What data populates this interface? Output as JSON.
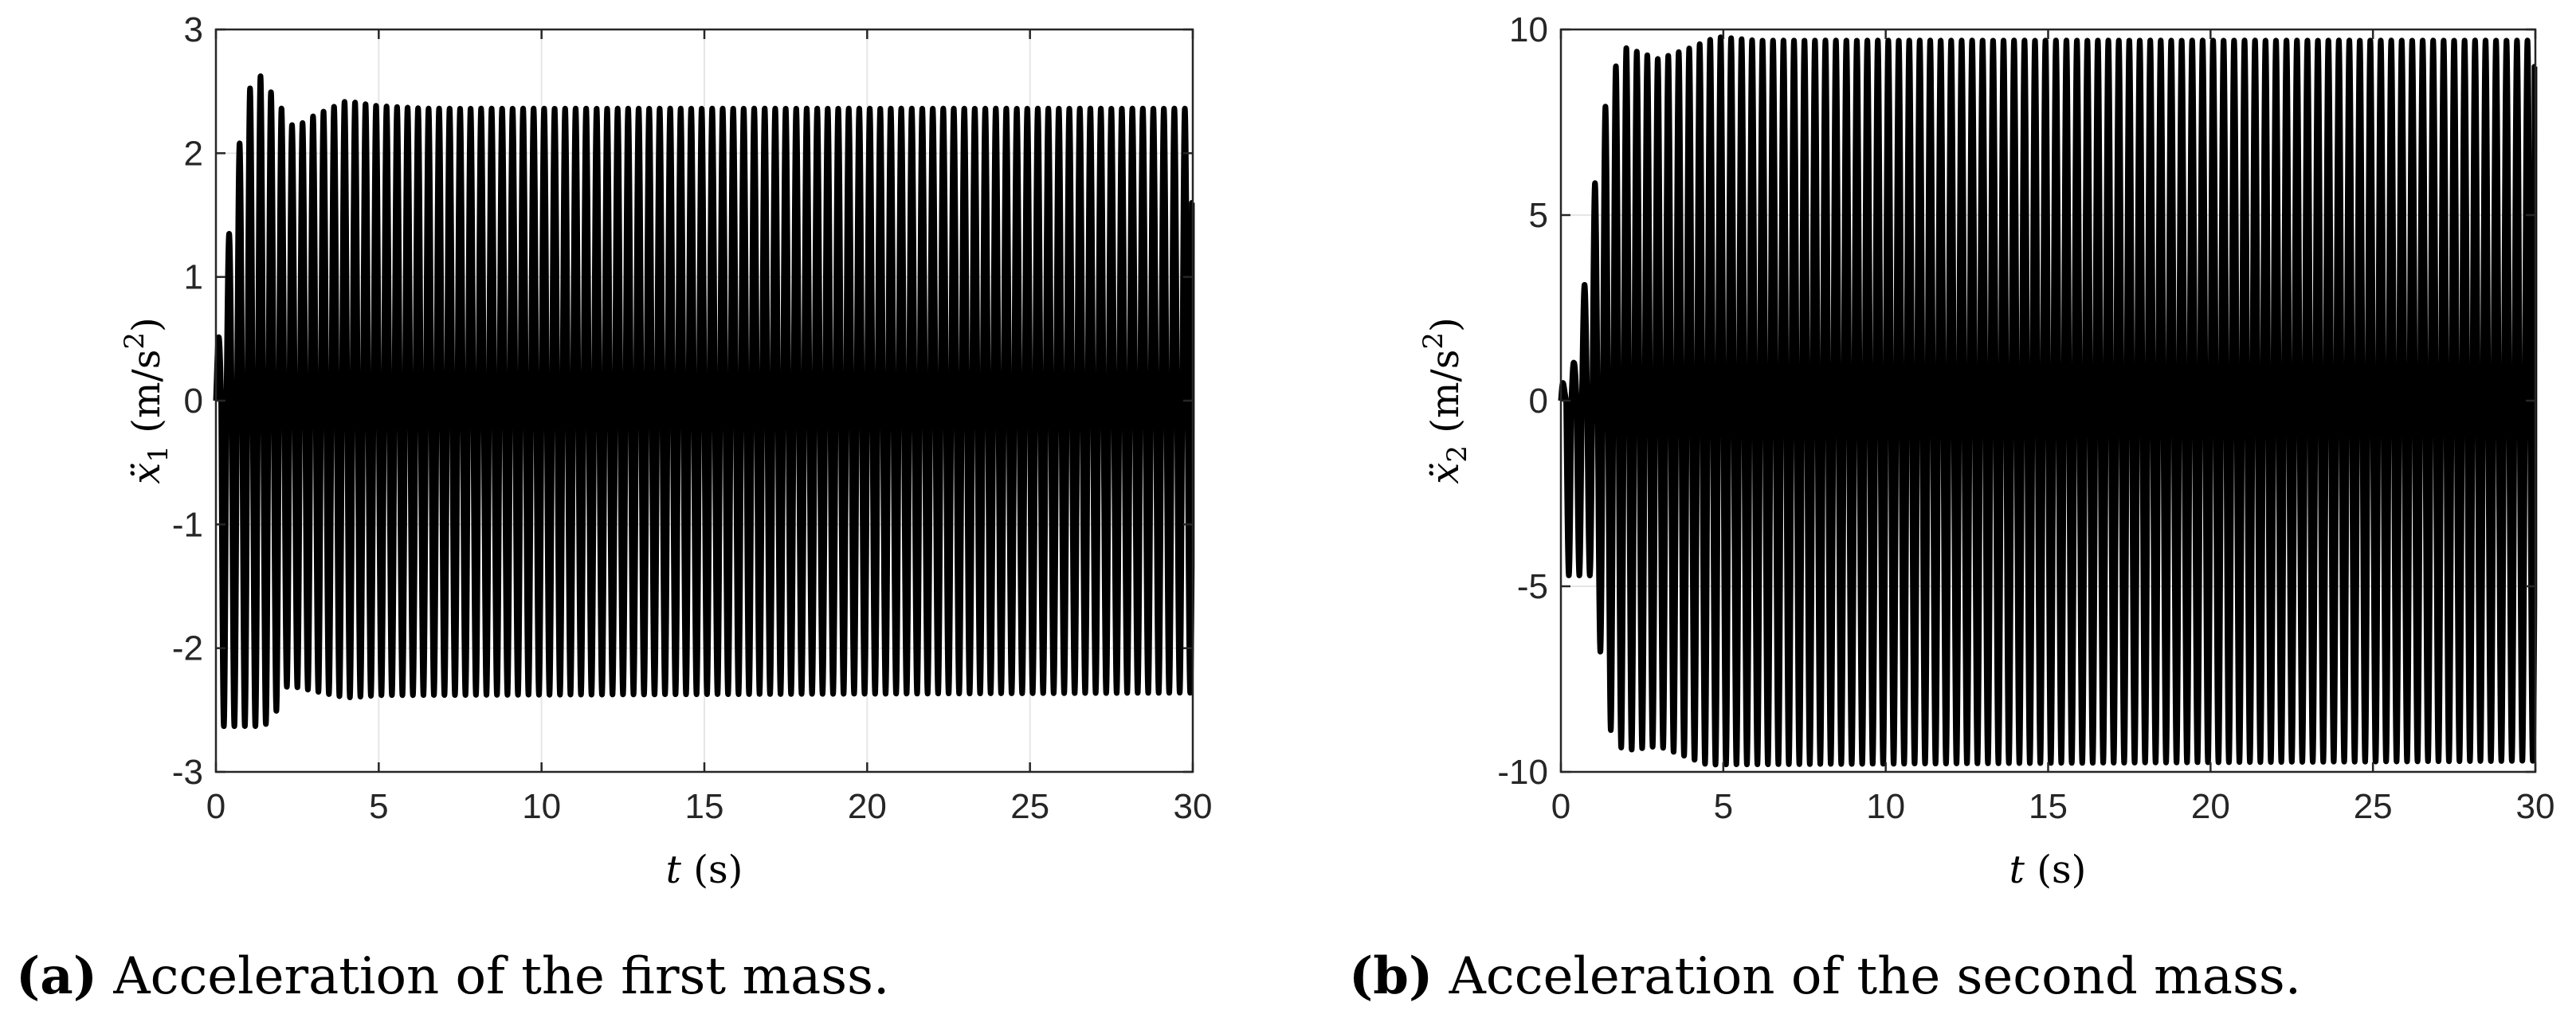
{
  "figure": {
    "panels": [
      {
        "caption_letter": "(a)",
        "caption_text": " Acceleration of the first mass.",
        "ylabel_symbol": "ẍ",
        "ylabel_subscript": "1",
        "ylabel_unit_open": "(m/s",
        "ylabel_unit_power": "2",
        "ylabel_unit_close": ")",
        "xlabel_symbol": "t",
        "xlabel_unit": "(s)"
      },
      {
        "caption_letter": "(b)",
        "caption_text": " Acceleration of the second mass.",
        "ylabel_symbol": "ẍ",
        "ylabel_subscript": "2",
        "ylabel_unit_open": "(m/s",
        "ylabel_unit_power": "2",
        "ylabel_unit_close": ")",
        "xlabel_symbol": "t",
        "xlabel_unit": "(s)"
      }
    ]
  },
  "chart_data": [
    {
      "type": "line",
      "xlabel": "t (s)",
      "ylabel": "ẍ1 (m/s2)",
      "xlim": [
        0,
        30
      ],
      "ylim": [
        -3,
        3
      ],
      "xticks": [
        0,
        5,
        10,
        15,
        20,
        25,
        30
      ],
      "yticks": [
        -3,
        -2,
        -1,
        0,
        1,
        2,
        3
      ],
      "xtick_labels": [
        "0",
        "5",
        "10",
        "15",
        "20",
        "25",
        "30"
      ],
      "ytick_labels": [
        "-3",
        "-2",
        "-1",
        "0",
        "1",
        "2",
        "3"
      ],
      "grid": true,
      "line_color": "#000000",
      "signal": {
        "frequency_hz": 3.1,
        "steady_amplitude": 2.36,
        "envelope": [
          [
            0,
            0.3
          ],
          [
            0.5,
            1.6
          ],
          [
            0.9,
            2.45
          ],
          [
            1.3,
            2.65
          ],
          [
            1.8,
            2.45
          ],
          [
            2.4,
            2.2
          ],
          [
            3.0,
            2.3
          ],
          [
            4.0,
            2.42
          ],
          [
            5.0,
            2.38
          ],
          [
            6.5,
            2.36
          ],
          [
            30,
            2.36
          ]
        ],
        "lower_extremes": [
          [
            1.3,
            -2.63
          ],
          [
            1.7,
            -2.6
          ],
          [
            2.2,
            -2.3
          ],
          [
            4.0,
            -2.4
          ],
          [
            5.0,
            -2.38
          ],
          [
            30,
            -2.36
          ]
        ],
        "end_value": 1.6
      }
    },
    {
      "type": "line",
      "xlabel": "t (s)",
      "ylabel": "ẍ2 (m/s2)",
      "xlim": [
        0,
        30
      ],
      "ylim": [
        -10,
        10
      ],
      "xticks": [
        0,
        5,
        10,
        15,
        20,
        25,
        30
      ],
      "yticks": [
        -10,
        -5,
        0,
        5,
        10
      ],
      "xtick_labels": [
        "0",
        "5",
        "10",
        "15",
        "20",
        "25",
        "30"
      ],
      "ytick_labels": [
        "-10",
        "-5",
        "0",
        "5",
        "10"
      ],
      "grid": true,
      "line_color": "#000000",
      "signal": {
        "frequency_hz": 3.1,
        "steady_amplitude": 9.7,
        "envelope": [
          [
            0,
            0.3
          ],
          [
            0.4,
            1.0
          ],
          [
            0.7,
            2.9
          ],
          [
            1.1,
            6.3
          ],
          [
            1.5,
            8.7
          ],
          [
            2.0,
            9.5
          ],
          [
            3.0,
            9.2
          ],
          [
            4.0,
            9.5
          ],
          [
            4.8,
            9.8
          ],
          [
            6.0,
            9.7
          ],
          [
            30,
            9.7
          ]
        ],
        "lower_extremes": [
          [
            0.9,
            -4.7
          ],
          [
            1.6,
            -9.3
          ],
          [
            2.2,
            -9.4
          ],
          [
            3.0,
            -9.3
          ],
          [
            4.5,
            -9.8
          ],
          [
            30,
            -9.7
          ]
        ],
        "end_value": 9.0
      }
    }
  ]
}
